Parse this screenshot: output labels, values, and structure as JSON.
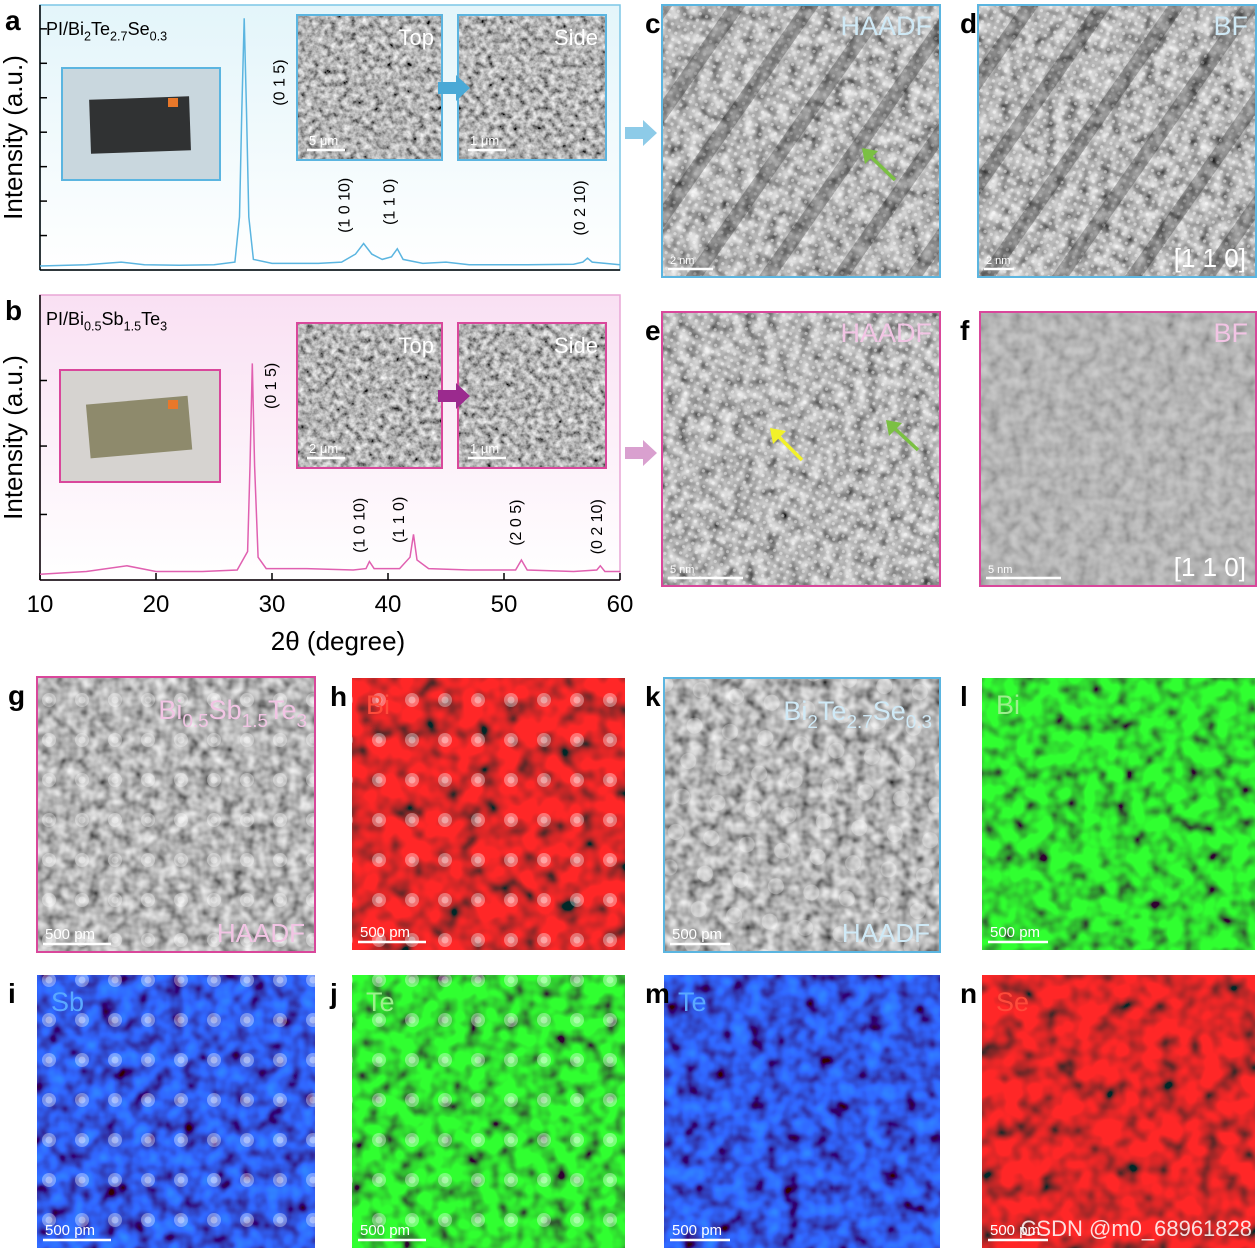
{
  "chart_data": [
    {
      "type": "line",
      "letter": "a",
      "title_parts": [
        "PI/Bi",
        "2",
        "Te",
        "2.7",
        "Se",
        "0.3"
      ],
      "ylabel": "Intensity (a.u.)",
      "color": "#5bb5e0",
      "x": [
        10,
        14,
        17,
        19,
        22,
        25,
        26.8,
        27.2,
        27.4,
        27.6,
        27.8,
        28,
        28.4,
        30,
        34,
        36,
        37.2,
        37.9,
        38.6,
        39.5,
        40.3,
        40.8,
        41.3,
        43,
        45,
        47,
        52,
        56,
        56.8,
        57.2,
        57.6,
        60
      ],
      "values": [
        1.5,
        2,
        3,
        2,
        1.8,
        2,
        3,
        20,
        60,
        95,
        60,
        20,
        4,
        2.5,
        2.5,
        3,
        6,
        10,
        6,
        4,
        5,
        8,
        4,
        2.5,
        3,
        2,
        2,
        2.2,
        3,
        4.5,
        3,
        2
      ],
      "xlim": [
        10,
        60
      ],
      "ylim": [
        0,
        100
      ],
      "yticks": [
        13,
        26,
        39,
        52,
        65,
        78,
        91
      ],
      "annotations": [
        {
          "text": "(0 1 5)",
          "x": 30.7,
          "y": 62
        },
        {
          "text": "(1 0 10)",
          "x": 36.3,
          "y": 14
        },
        {
          "text": "(1 1 0)",
          "x": 40.2,
          "y": 17
        },
        {
          "text": "(0 2 10)",
          "x": 56.6,
          "y": 13
        }
      ],
      "insets": [
        {
          "label": "Top",
          "scale": "5 μm"
        },
        {
          "label": "Side",
          "scale": "1 μm"
        }
      ]
    },
    {
      "type": "line",
      "letter": "b",
      "title_parts": [
        "PI/Bi",
        "0.5",
        "Sb",
        "1.5",
        "Te",
        "3"
      ],
      "ylabel": "Intensity (a.u.)",
      "xlabel": "2θ (degree)",
      "color": "#e060b0",
      "x": [
        10,
        14,
        17.5,
        20,
        24,
        27,
        27.9,
        28.1,
        28.3,
        28.5,
        28.8,
        29.5,
        33,
        37,
        38.1,
        38.4,
        38.8,
        41,
        41.9,
        42.2,
        42.5,
        43.5,
        47,
        51,
        51.5,
        52,
        56,
        58,
        58.3,
        58.7,
        60
      ],
      "values": [
        2,
        3,
        5,
        3,
        3,
        3.5,
        10,
        40,
        76,
        40,
        8,
        4,
        4,
        3.5,
        4,
        6.5,
        4,
        4,
        8,
        16,
        7,
        4,
        3.5,
        3.5,
        7,
        3.5,
        3,
        3.5,
        5,
        3,
        3
      ],
      "xlim": [
        10,
        60
      ],
      "xticks": [
        10,
        20,
        30,
        40,
        50,
        60
      ],
      "ylim": [
        0,
        100
      ],
      "yticks": [
        23,
        47,
        70
      ],
      "annotations": [
        {
          "text": "(0 1 5)",
          "x": 30.0,
          "y": 60
        },
        {
          "text": "(1 0 10)",
          "x": 37.6,
          "y": 9.5
        },
        {
          "text": "(1 1 0)",
          "x": 41.0,
          "y": 13
        },
        {
          "text": "(2 0 5)",
          "x": 51.1,
          "y": 12
        },
        {
          "text": "(0 2 10)",
          "x": 58.1,
          "y": 9
        }
      ],
      "insets": [
        {
          "label": "Top",
          "scale": "2 μm"
        },
        {
          "label": "Side",
          "scale": "1 μm"
        }
      ]
    }
  ],
  "images": [
    {
      "letter": "c",
      "label": "HAADF",
      "scale": "2 nm"
    },
    {
      "letter": "d",
      "label": "BF",
      "note": "[1 1 0]",
      "scale": "2 nm"
    },
    {
      "letter": "e",
      "label": "HAADF",
      "scale": "5 nm"
    },
    {
      "letter": "f",
      "label": "BF",
      "note": "[1 1 0]",
      "scale": "5 nm"
    },
    {
      "letter": "g",
      "label_parts": [
        "Bi",
        "0.5",
        "Sb",
        "1.5",
        "Te",
        "3"
      ],
      "note": "HAADF",
      "scale": "500 pm"
    },
    {
      "letter": "h",
      "label": "Bi",
      "scale": "500 pm"
    },
    {
      "letter": "k",
      "label_parts": [
        "Bi",
        "2",
        "Te",
        "2.7",
        "Se",
        "0.3"
      ],
      "note": "HAADF",
      "scale": "500 pm"
    },
    {
      "letter": "l",
      "label": "Bi",
      "scale": "500 pm"
    },
    {
      "letter": "i",
      "label": "Sb",
      "scale": "500 pm"
    },
    {
      "letter": "j",
      "label": "Te",
      "scale": "500 pm"
    },
    {
      "letter": "m",
      "label": "Te",
      "scale": "500 pm"
    },
    {
      "letter": "n",
      "label": "Se",
      "scale": "500 pm"
    }
  ],
  "watermark": "CSDN @m0_68961828"
}
